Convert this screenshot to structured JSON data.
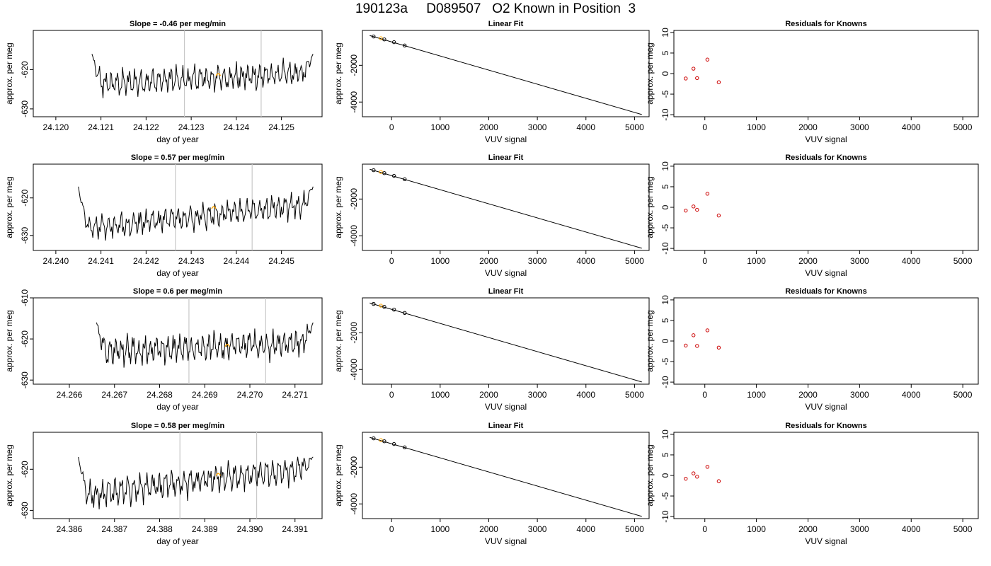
{
  "page": {
    "title": "190123a     D089507   O2 Known in Position  3"
  },
  "colors": {
    "trace": "#000000",
    "marker": "#ffa500",
    "vline": "#c8c8c8",
    "residual": "#cc0000",
    "axis": "#000000"
  },
  "chart_data": [
    {
      "type": "line",
      "row": 1,
      "panel": "time",
      "title": "Slope =  -0.46  per meg/min",
      "xlabel": "day of year",
      "ylabel": "approx. per meg",
      "xlim": [
        24.1195,
        24.1259
      ],
      "ylim": [
        -632,
        -610
      ],
      "xticks": [
        "24.120",
        "24.121",
        "24.122",
        "24.123",
        "24.124",
        "24.125"
      ],
      "yticks": [
        "-620",
        "-630"
      ],
      "trace": {
        "start": 24.1208,
        "end": 24.1257,
        "base_left": -623.8,
        "base_right": -620.8,
        "edge_high": -610
      },
      "vlines": [
        24.12285,
        24.12455
      ],
      "marker": {
        "x": 24.1236,
        "y": -621.2
      }
    },
    {
      "type": "line",
      "row": 1,
      "panel": "fit",
      "title": "Linear Fit",
      "xlabel": "VUV signal",
      "ylabel": "approx. per meg",
      "xlim": [
        -600,
        5300
      ],
      "ylim": [
        -4800,
        -100
      ],
      "xticks": [
        "0",
        "1000",
        "2000",
        "3000",
        "4000",
        "5000"
      ],
      "yticks": [
        "-2000",
        "-4000"
      ],
      "line": {
        "x": [
          -450,
          5150
        ],
        "y": [
          -380,
          -4680
        ]
      },
      "points": [
        {
          "x": -370,
          "y": -430,
          "color": "black"
        },
        {
          "x": -220,
          "y": -525,
          "color": "orange"
        },
        {
          "x": -150,
          "y": -590,
          "color": "black"
        },
        {
          "x": 50,
          "y": -740,
          "color": "black"
        },
        {
          "x": 270,
          "y": -920,
          "color": "black"
        }
      ]
    },
    {
      "type": "scatter",
      "row": 1,
      "panel": "residuals",
      "title": "Residuals for Knowns",
      "xlabel": "VUV signal",
      "ylabel": "approx. per meg",
      "xlim": [
        -600,
        5300
      ],
      "ylim": [
        -10.5,
        10.5
      ],
      "xticks": [
        "0",
        "1000",
        "2000",
        "3000",
        "4000",
        "5000"
      ],
      "yticks": [
        "10",
        "5",
        "0",
        "-5",
        "-10"
      ],
      "points": [
        {
          "x": -370,
          "y": -1.2
        },
        {
          "x": -220,
          "y": 1.2
        },
        {
          "x": -150,
          "y": -1.1
        },
        {
          "x": 50,
          "y": 3.4
        },
        {
          "x": 270,
          "y": -2.1
        }
      ]
    },
    {
      "type": "line",
      "row": 2,
      "panel": "time",
      "title": "Slope =  0.57  per meg/min",
      "xlabel": "day of year",
      "ylabel": "approx. per meg",
      "xlim": [
        24.2395,
        24.2459
      ],
      "ylim": [
        -634,
        -611
      ],
      "xticks": [
        "24.240",
        "24.241",
        "24.242",
        "24.243",
        "24.244",
        "24.245"
      ],
      "yticks": [
        "-620",
        "-630"
      ],
      "trace": {
        "start": 24.2405,
        "end": 24.2457,
        "base_left": -628.5,
        "base_right": -621.5,
        "edge_high": -611
      },
      "vlines": [
        24.24265,
        24.24435
      ],
      "marker": {
        "x": 24.2435,
        "y": -622.5
      }
    },
    {
      "type": "line",
      "row": 2,
      "panel": "fit",
      "title": "Linear Fit",
      "xlabel": "VUV signal",
      "ylabel": "approx. per meg",
      "xlim": [
        -600,
        5300
      ],
      "ylim": [
        -4800,
        -100
      ],
      "xticks": [
        "0",
        "1000",
        "2000",
        "3000",
        "4000",
        "5000"
      ],
      "yticks": [
        "-2000",
        "-4000"
      ],
      "line": {
        "x": [
          -450,
          5150
        ],
        "y": [
          -380,
          -4680
        ]
      },
      "points": [
        {
          "x": -370,
          "y": -430,
          "color": "black"
        },
        {
          "x": -220,
          "y": -525,
          "color": "orange"
        },
        {
          "x": -150,
          "y": -590,
          "color": "black"
        },
        {
          "x": 50,
          "y": -740,
          "color": "black"
        },
        {
          "x": 270,
          "y": -920,
          "color": "black"
        }
      ]
    },
    {
      "type": "scatter",
      "row": 2,
      "panel": "residuals",
      "title": "Residuals for Knowns",
      "xlabel": "VUV signal",
      "ylabel": "approx. per meg",
      "xlim": [
        -600,
        5300
      ],
      "ylim": [
        -10.5,
        10.5
      ],
      "xticks": [
        "0",
        "1000",
        "2000",
        "3000",
        "4000",
        "5000"
      ],
      "yticks": [
        "10",
        "5",
        "0",
        "-5",
        "-10"
      ],
      "points": [
        {
          "x": -370,
          "y": -0.8
        },
        {
          "x": -220,
          "y": 0.2
        },
        {
          "x": -150,
          "y": -0.6
        },
        {
          "x": 50,
          "y": 3.3
        },
        {
          "x": 270,
          "y": -2.0
        }
      ]
    },
    {
      "type": "line",
      "row": 3,
      "panel": "time",
      "title": "Slope =  0.6  per meg/min",
      "xlabel": "day of year",
      "ylabel": "approx. per meg",
      "xlim": [
        24.2652,
        24.2716
      ],
      "ylim": [
        -631,
        -610
      ],
      "xticks": [
        "24.266",
        "24.267",
        "24.268",
        "24.269",
        "24.270",
        "24.271"
      ],
      "yticks": [
        "-610",
        "-620",
        "-630"
      ],
      "trace": {
        "start": 24.2666,
        "end": 24.2714,
        "base_left": -623.2,
        "base_right": -620.8,
        "edge_high": -610
      },
      "vlines": [
        24.26865,
        24.27035
      ],
      "marker": {
        "x": 24.2695,
        "y": -621.5
      }
    },
    {
      "type": "line",
      "row": 3,
      "panel": "fit",
      "title": "Linear Fit",
      "xlabel": "VUV signal",
      "ylabel": "approx. per meg",
      "xlim": [
        -600,
        5300
      ],
      "ylim": [
        -4800,
        -100
      ],
      "xticks": [
        "0",
        "1000",
        "2000",
        "3000",
        "4000",
        "5000"
      ],
      "yticks": [
        "-2000",
        "-4000"
      ],
      "line": {
        "x": [
          -450,
          5150
        ],
        "y": [
          -380,
          -4680
        ]
      },
      "points": [
        {
          "x": -370,
          "y": -430,
          "color": "black"
        },
        {
          "x": -220,
          "y": -525,
          "color": "orange"
        },
        {
          "x": -150,
          "y": -590,
          "color": "black"
        },
        {
          "x": 50,
          "y": -740,
          "color": "black"
        },
        {
          "x": 270,
          "y": -920,
          "color": "black"
        }
      ]
    },
    {
      "type": "scatter",
      "row": 3,
      "panel": "residuals",
      "title": "Residuals for Knowns",
      "xlabel": "VUV signal",
      "ylabel": "approx. per meg",
      "xlim": [
        -600,
        5300
      ],
      "ylim": [
        -10.5,
        10.5
      ],
      "xticks": [
        "0",
        "1000",
        "2000",
        "3000",
        "4000",
        "5000"
      ],
      "yticks": [
        "10",
        "5",
        "0",
        "-5",
        "-10"
      ],
      "points": [
        {
          "x": -370,
          "y": -1.1
        },
        {
          "x": -220,
          "y": 1.4
        },
        {
          "x": -150,
          "y": -1.2
        },
        {
          "x": 50,
          "y": 2.6
        },
        {
          "x": 270,
          "y": -1.6
        }
      ]
    },
    {
      "type": "line",
      "row": 4,
      "panel": "time",
      "title": "Slope =  0.58  per meg/min",
      "xlabel": "day of year",
      "ylabel": "approx. per meg",
      "xlim": [
        24.3852,
        24.3916
      ],
      "ylim": [
        -632,
        -611
      ],
      "xticks": [
        "24.386",
        "24.387",
        "24.388",
        "24.389",
        "24.390",
        "24.391"
      ],
      "yticks": [
        "-620",
        "-630"
      ],
      "trace": {
        "start": 24.3862,
        "end": 24.3914,
        "base_left": -626.5,
        "base_right": -619.5,
        "edge_high": -611
      },
      "vlines": [
        24.38845,
        24.39015
      ],
      "marker": {
        "x": 24.3893,
        "y": -621.2
      }
    },
    {
      "type": "line",
      "row": 4,
      "panel": "fit",
      "title": "Linear Fit",
      "xlabel": "VUV signal",
      "ylabel": "approx. per meg",
      "xlim": [
        -600,
        5300
      ],
      "ylim": [
        -4800,
        -100
      ],
      "xticks": [
        "0",
        "1000",
        "2000",
        "3000",
        "4000",
        "5000"
      ],
      "yticks": [
        "-2000",
        "-4000"
      ],
      "line": {
        "x": [
          -450,
          5150
        ],
        "y": [
          -380,
          -4680
        ]
      },
      "points": [
        {
          "x": -370,
          "y": -430,
          "color": "black"
        },
        {
          "x": -220,
          "y": -525,
          "color": "orange"
        },
        {
          "x": -150,
          "y": -590,
          "color": "black"
        },
        {
          "x": 50,
          "y": -740,
          "color": "black"
        },
        {
          "x": 270,
          "y": -920,
          "color": "black"
        }
      ]
    },
    {
      "type": "scatter",
      "row": 4,
      "panel": "residuals",
      "title": "Residuals for Knowns",
      "xlabel": "VUV signal",
      "ylabel": "approx. per meg",
      "xlim": [
        -600,
        5300
      ],
      "ylim": [
        -10.5,
        10.5
      ],
      "xticks": [
        "0",
        "1000",
        "2000",
        "3000",
        "4000",
        "5000"
      ],
      "yticks": [
        "10",
        "5",
        "0",
        "-5",
        "-10"
      ],
      "points": [
        {
          "x": -370,
          "y": -0.8
        },
        {
          "x": -220,
          "y": 0.5
        },
        {
          "x": -150,
          "y": -0.3
        },
        {
          "x": 50,
          "y": 2.1
        },
        {
          "x": 270,
          "y": -1.4
        }
      ]
    }
  ]
}
